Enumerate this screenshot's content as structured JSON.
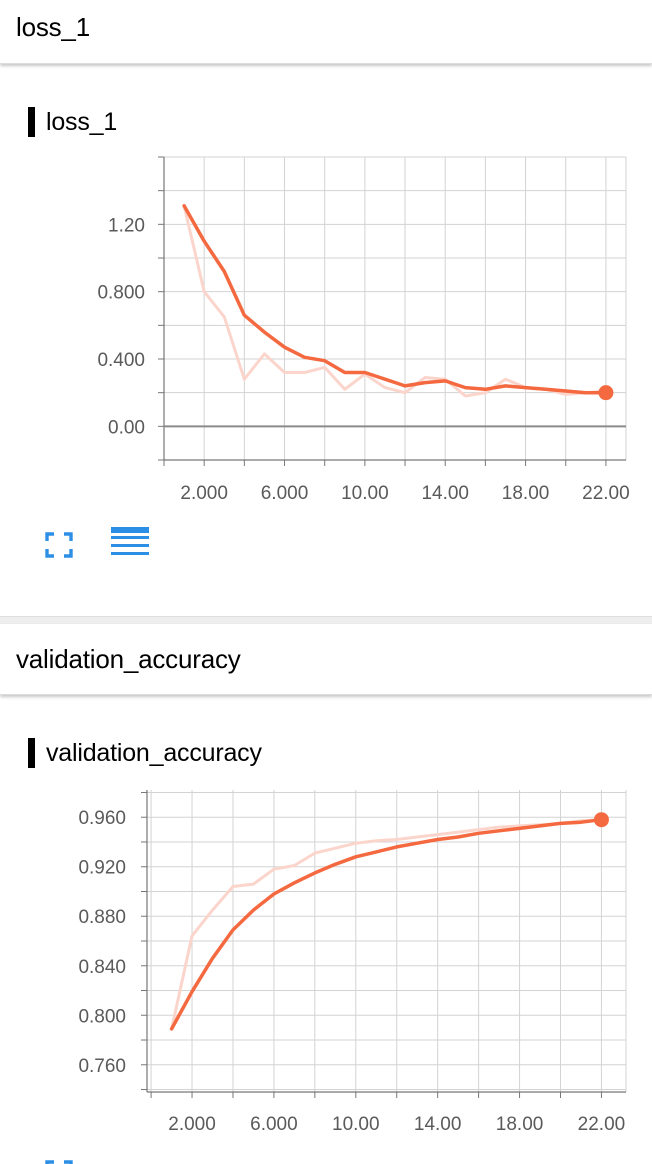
{
  "sections": [
    {
      "title": "loss_1",
      "card_title": "loss_1"
    },
    {
      "title": "validation_accuracy",
      "card_title": "validation_accuracy"
    }
  ],
  "colors": {
    "accent": "#f4693f",
    "raw": "#fbd5cb",
    "icon": "#2d8ee6",
    "grid": "#d3d3d3"
  },
  "icons": {
    "fullscreen": "fullscreen-icon",
    "data_toggle": "data-toggle-icon"
  },
  "chart_data": [
    {
      "type": "line",
      "title": "loss_1",
      "xlim": [
        0,
        23
      ],
      "ylim": [
        -0.2,
        1.6
      ],
      "xticks": [
        2,
        6,
        10,
        14,
        18,
        22
      ],
      "xtick_labels": [
        "2.000",
        "6.000",
        "10.00",
        "14.00",
        "18.00",
        "22.00"
      ],
      "yticks": [
        0,
        0.4,
        0.8,
        1.2
      ],
      "ytick_labels": [
        "0.00",
        "0.400",
        "0.800",
        "1.20"
      ],
      "series": [
        {
          "x": [
            1,
            2,
            3,
            4,
            5,
            6,
            7,
            8,
            9,
            10,
            11,
            12,
            13,
            14,
            15,
            16,
            17,
            18,
            19,
            20,
            21,
            22
          ],
          "values": [
            1.31,
            0.8,
            0.65,
            0.28,
            0.43,
            0.32,
            0.32,
            0.35,
            0.22,
            0.31,
            0.23,
            0.2,
            0.29,
            0.28,
            0.18,
            0.2,
            0.28,
            0.23,
            0.22,
            0.19,
            0.2,
            0.21
          ]
        },
        {
          "x": [
            1,
            2,
            3,
            4,
            5,
            6,
            7,
            8,
            9,
            10,
            11,
            12,
            13,
            14,
            15,
            16,
            17,
            18,
            19,
            20,
            21,
            22
          ],
          "values": [
            1.31,
            1.1,
            0.92,
            0.66,
            0.56,
            0.47,
            0.41,
            0.39,
            0.32,
            0.32,
            0.28,
            0.24,
            0.26,
            0.27,
            0.23,
            0.22,
            0.24,
            0.23,
            0.22,
            0.21,
            0.2,
            0.2
          ]
        }
      ]
    },
    {
      "type": "line",
      "title": "validation_accuracy",
      "xlim": [
        -0.2,
        23.2
      ],
      "ylim": [
        0.738,
        0.982
      ],
      "xticks": [
        2,
        6,
        10,
        14,
        18,
        22
      ],
      "xtick_labels": [
        "2.000",
        "6.000",
        "10.00",
        "14.00",
        "18.00",
        "22.00"
      ],
      "yticks": [
        0.76,
        0.8,
        0.84,
        0.88,
        0.92,
        0.96
      ],
      "ytick_labels": [
        "0.760",
        "0.800",
        "0.840",
        "0.880",
        "0.920",
        "0.960"
      ],
      "series": [
        {
          "x": [
            1,
            2,
            3,
            4,
            5,
            6,
            7,
            8,
            9,
            10,
            11,
            12,
            13,
            14,
            15,
            16,
            17,
            18,
            19,
            20,
            21,
            22
          ],
          "values": [
            0.789,
            0.864,
            0.885,
            0.904,
            0.906,
            0.918,
            0.921,
            0.931,
            0.935,
            0.939,
            0.941,
            0.942,
            0.944,
            0.946,
            0.948,
            0.95,
            0.952,
            0.953,
            0.954,
            0.955,
            0.957,
            0.958
          ]
        },
        {
          "x": [
            1,
            2,
            3,
            4,
            5,
            6,
            7,
            8,
            9,
            10,
            11,
            12,
            13,
            14,
            15,
            16,
            17,
            18,
            19,
            20,
            21,
            22
          ],
          "values": [
            0.789,
            0.819,
            0.846,
            0.869,
            0.885,
            0.898,
            0.907,
            0.915,
            0.922,
            0.928,
            0.932,
            0.936,
            0.939,
            0.942,
            0.944,
            0.947,
            0.949,
            0.951,
            0.953,
            0.955,
            0.956,
            0.958
          ]
        }
      ]
    }
  ]
}
